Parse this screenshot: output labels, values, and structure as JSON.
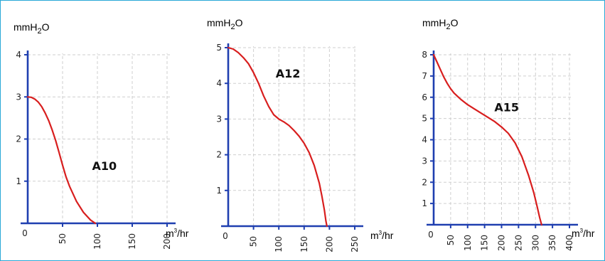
{
  "chart_data": [
    {
      "type": "line",
      "title": "",
      "xlabel_base": "m",
      "xlabel_sup": "3",
      "xlabel_tail": "/hr",
      "ylabel_base": "mmH",
      "ylabel_sub": "2",
      "ylabel_tail": "O",
      "xlim": [
        0,
        200
      ],
      "ylim": [
        0,
        4
      ],
      "x_ticks": [
        0,
        50,
        100,
        150,
        200
      ],
      "x_tick_labels": [
        "0",
        "50",
        "100",
        "150",
        "200"
      ],
      "y_ticks": [
        1,
        2,
        3,
        4
      ],
      "y_tick_labels": [
        "1",
        "2",
        "3",
        "4"
      ],
      "grid": true,
      "series": [
        {
          "name": "A10",
          "color": "#d81e1e",
          "x": [
            0,
            5,
            10,
            15,
            20,
            25,
            30,
            35,
            40,
            45,
            50,
            55,
            60,
            70,
            80,
            90,
            97
          ],
          "y": [
            3.0,
            2.99,
            2.95,
            2.88,
            2.77,
            2.62,
            2.44,
            2.22,
            1.97,
            1.68,
            1.38,
            1.1,
            0.88,
            0.52,
            0.26,
            0.08,
            0.0
          ],
          "label_at": [
            110,
            1.3
          ]
        }
      ]
    },
    {
      "type": "line",
      "title": "",
      "xlabel_base": "m",
      "xlabel_sup": "3",
      "xlabel_tail": "/hr",
      "ylabel_base": "mmH",
      "ylabel_sub": "2",
      "ylabel_tail": "O",
      "xlim": [
        0,
        250
      ],
      "ylim": [
        0,
        5
      ],
      "x_ticks": [
        0,
        50,
        100,
        150,
        200,
        250
      ],
      "x_tick_labels": [
        "0",
        "50",
        "100",
        "150",
        "200",
        "250"
      ],
      "y_ticks": [
        1,
        2,
        3,
        4,
        5
      ],
      "y_tick_labels": [
        "1",
        "2",
        "3",
        "4",
        "5"
      ],
      "grid": true,
      "series": [
        {
          "name": "A12",
          "color": "#d81e1e",
          "x": [
            0,
            10,
            20,
            30,
            40,
            50,
            60,
            70,
            80,
            90,
            100,
            110,
            120,
            130,
            140,
            150,
            160,
            170,
            180,
            185,
            190,
            193,
            195
          ],
          "y": [
            5.0,
            4.96,
            4.86,
            4.72,
            4.55,
            4.3,
            4.0,
            3.65,
            3.35,
            3.12,
            3.0,
            2.92,
            2.82,
            2.68,
            2.52,
            2.32,
            2.06,
            1.7,
            1.2,
            0.85,
            0.45,
            0.15,
            0.0
          ],
          "label_at": [
            118,
            4.2
          ]
        }
      ]
    },
    {
      "type": "line",
      "title": "",
      "xlabel_base": "m",
      "xlabel_sup": "3",
      "xlabel_tail": "/hr",
      "ylabel_base": "mmH",
      "ylabel_sub": "2",
      "ylabel_tail": "O",
      "xlim": [
        0,
        400
      ],
      "ylim": [
        0,
        8
      ],
      "x_ticks": [
        0,
        50,
        100,
        150,
        200,
        250,
        300,
        350,
        400
      ],
      "x_tick_labels": [
        "0",
        "50",
        "100",
        "150",
        "200",
        "250",
        "300",
        "350",
        "400"
      ],
      "y_ticks": [
        1,
        2,
        3,
        4,
        5,
        6,
        7,
        8
      ],
      "y_tick_labels": [
        "1",
        "2",
        "3",
        "4",
        "5",
        "6",
        "7",
        "8"
      ],
      "grid": true,
      "series": [
        {
          "name": "A15",
          "color": "#d81e1e",
          "x": [
            0,
            10,
            20,
            30,
            40,
            50,
            60,
            70,
            80,
            100,
            120,
            140,
            160,
            180,
            200,
            220,
            240,
            260,
            280,
            295,
            305,
            312,
            318
          ],
          "y": [
            8.0,
            7.65,
            7.3,
            6.95,
            6.65,
            6.4,
            6.2,
            6.05,
            5.9,
            5.65,
            5.45,
            5.25,
            5.05,
            4.85,
            4.6,
            4.3,
            3.85,
            3.2,
            2.3,
            1.5,
            0.85,
            0.35,
            0.0
          ],
          "label_at": [
            215,
            5.4
          ]
        }
      ]
    }
  ]
}
